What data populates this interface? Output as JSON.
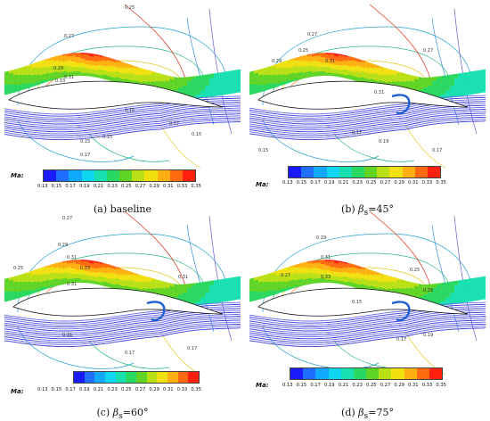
{
  "colorbar": {
    "label": "Ma:",
    "ticks": [
      "0.13",
      "0.15",
      "0.17",
      "0.19",
      "0.21",
      "0.23",
      "0.25",
      "0.27",
      "0.29",
      "0.31",
      "0.33",
      "0.35"
    ],
    "colors": [
      "#1a1aff",
      "#1e6fff",
      "#11a8ff",
      "#0fd6f0",
      "#18e0b0",
      "#29d860",
      "#5fd425",
      "#b8e014",
      "#f1e010",
      "#ffb010",
      "#ff6a10",
      "#ff2010"
    ]
  },
  "panels": [
    {
      "id": "a",
      "prefix": "(a)",
      "text": "baseline",
      "beta": "",
      "sub": "",
      "eq": "",
      "angle": "",
      "contours": [
        "0.27",
        "0.29",
        "0.31",
        "0.33",
        "0.25",
        "0.15",
        "0.15",
        "0.15",
        "0.17",
        "0.15",
        "0.17"
      ]
    },
    {
      "id": "b",
      "prefix": "(b)",
      "text": "",
      "beta": "β",
      "sub": "s",
      "eq": "=",
      "angle": "45°",
      "contours": [
        "0.29",
        "0.27",
        "0.31",
        "0.25",
        "0.27",
        "0.31",
        "0.15",
        "0.17",
        "0.19",
        "0.17"
      ]
    },
    {
      "id": "c",
      "prefix": "(c)",
      "text": "",
      "beta": "β",
      "sub": "s",
      "eq": "=",
      "angle": "60°",
      "contours": [
        "0.27",
        "0.29",
        "0.31",
        "0.33",
        "0.31",
        "0.25",
        "0.31",
        "0.15",
        "0.17",
        "0.17"
      ]
    },
    {
      "id": "d",
      "prefix": "(d)",
      "text": "",
      "beta": "β",
      "sub": "s",
      "eq": "=",
      "angle": "75°",
      "contours": [
        "0.29",
        "0.31",
        "0.33",
        "0.27",
        "0.25",
        "0.29",
        "0.15",
        "0.17",
        "0.19"
      ]
    }
  ]
}
